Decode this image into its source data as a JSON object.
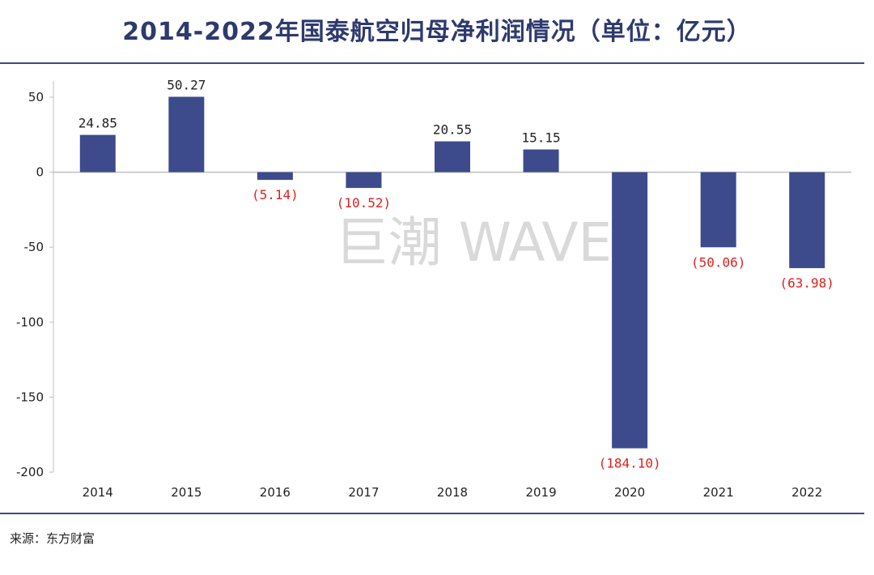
{
  "title": "2014-2022年国泰航空归母净利润情况（单位：亿元）",
  "source": "来源：东方财富",
  "watermark": "巨潮 WAVE",
  "colors": {
    "bar": "#3d4b8c",
    "positive_label": "#222222",
    "negative_label": "#e0201c",
    "axis": "#bfbfbf"
  },
  "chart_data": {
    "type": "bar",
    "title": "2014-2022年国泰航空归母净利润情况（单位：亿元）",
    "xlabel": "",
    "ylabel": "",
    "categories": [
      "2014",
      "2015",
      "2016",
      "2017",
      "2018",
      "2019",
      "2020",
      "2021",
      "2022"
    ],
    "values": [
      24.85,
      50.27,
      -5.14,
      -10.52,
      20.55,
      15.15,
      -184.1,
      -50.06,
      -63.98
    ],
    "data_labels": [
      "24.85",
      "50.27",
      "(5.14)",
      "(10.52)",
      "20.55",
      "15.15",
      "(184.10)",
      "(50.06)",
      "(63.98)"
    ],
    "ylim": [
      -200,
      50
    ],
    "yticks": [
      50,
      0,
      -50,
      -100,
      -150,
      -200
    ],
    "ytick_labels": [
      "50",
      "0",
      "-50",
      "-100",
      "-150",
      "-200"
    ],
    "grid": false
  }
}
